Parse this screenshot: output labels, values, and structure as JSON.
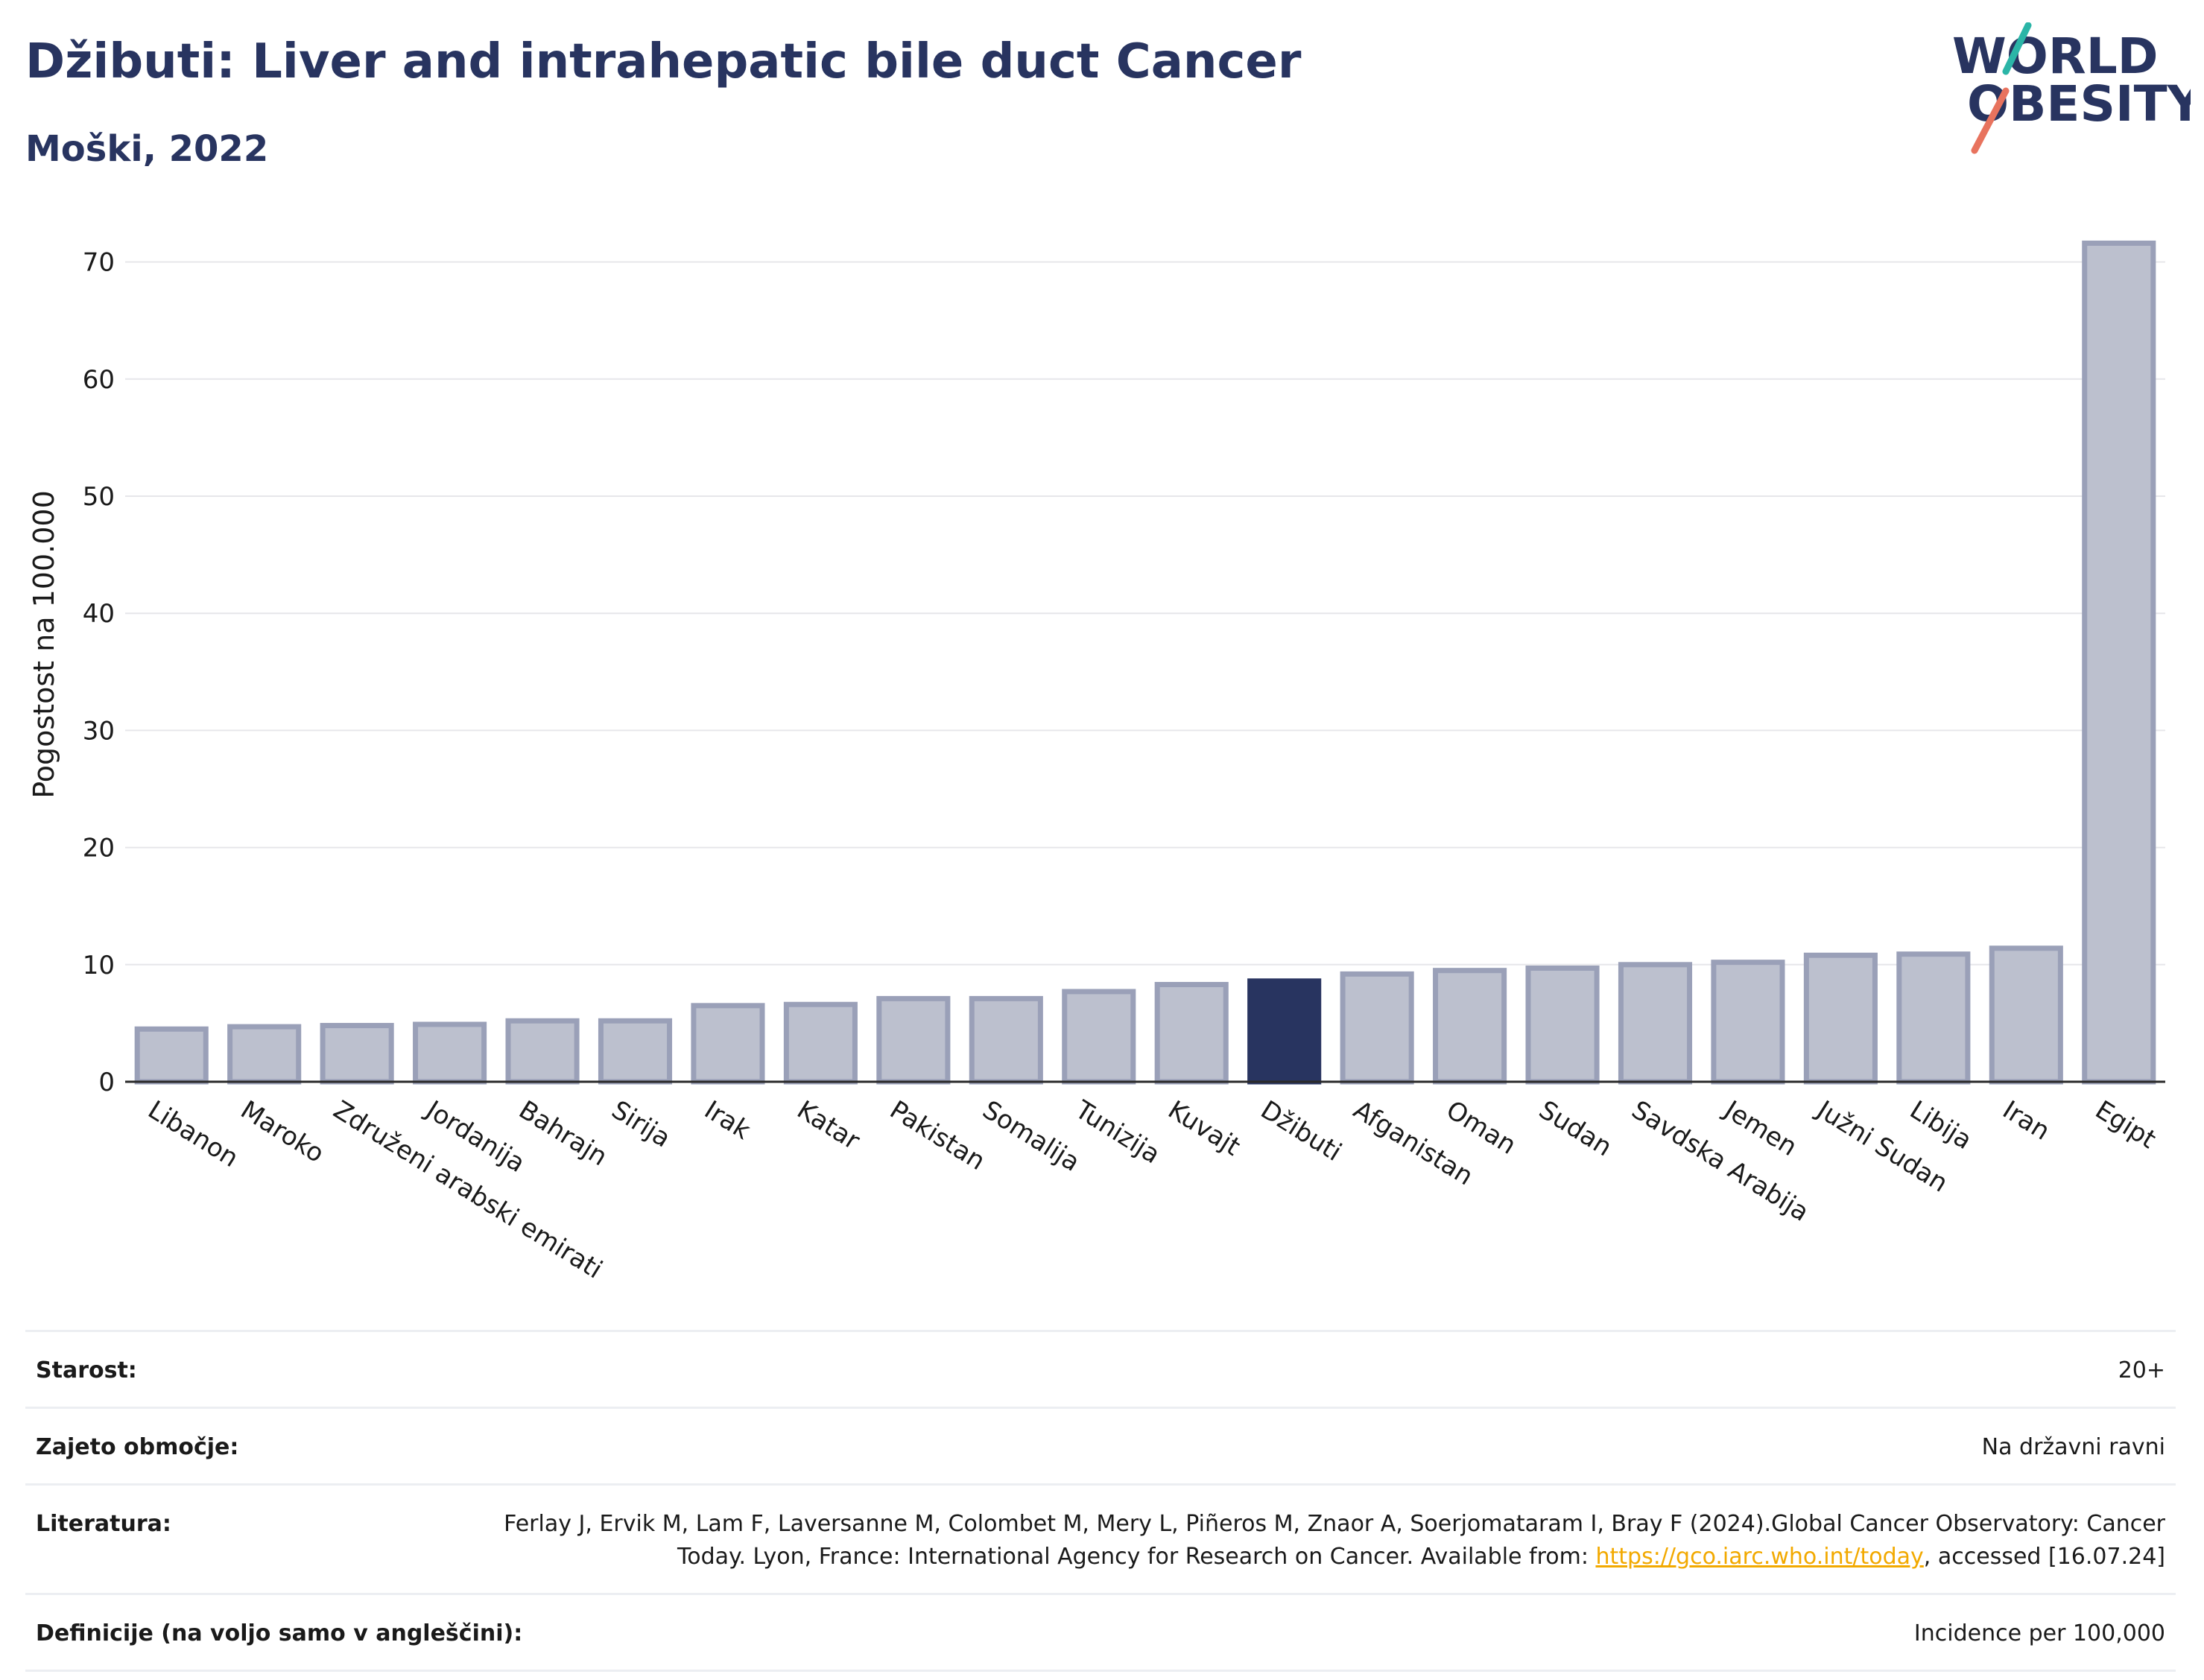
{
  "header": {
    "title": "Džibuti: Liver and intrahepatic bile duct Cancer",
    "subtitle": "Moški, 2022"
  },
  "logo": {
    "line1": "WORLD",
    "line2": "OBESITY"
  },
  "colors": {
    "highlight": "#283460",
    "bar": "#bcc0ce",
    "bar_border": "#9aa0b8",
    "accent_teal": "#2bb5a7",
    "accent_red": "#e8735e",
    "link": "#f2a900"
  },
  "chart_data": {
    "type": "bar",
    "ylabel": "Pogostost na 100.000",
    "xlabel": "",
    "ylim": [
      0,
      75
    ],
    "yticks": [
      0,
      10,
      20,
      30,
      40,
      50,
      60,
      70
    ],
    "grid": true,
    "highlight": "Džibuti",
    "categories": [
      "Libanon",
      "Maroko",
      "Združeni arabski emirati",
      "Jordanija",
      "Bahrajn",
      "Sirija",
      "Irak",
      "Katar",
      "Pakistan",
      "Somalija",
      "Tunizija",
      "Kuvajt",
      "Džibuti",
      "Afganistan",
      "Oman",
      "Sudan",
      "Savdska Arabija",
      "Jemen",
      "Južni Sudan",
      "Libija",
      "Iran",
      "Egipt"
    ],
    "values": [
      4.5,
      4.7,
      4.8,
      4.9,
      5.2,
      5.2,
      6.5,
      6.6,
      7.1,
      7.1,
      7.7,
      8.3,
      8.6,
      9.2,
      9.5,
      9.7,
      10.0,
      10.2,
      10.8,
      10.9,
      11.4,
      71.6
    ]
  },
  "meta": {
    "age_label": "Starost:",
    "age_value": "20+",
    "area_label": "Zajeto območje:",
    "area_value": "Na državni ravni",
    "lit_label": "Literatura:",
    "lit_text_1": "Ferlay J, Ervik M, Lam F, Laversanne M, Colombet M, Mery L, Piñeros M, Znaor A, Soerjomataram I, Bray F (2024).Global Cancer Observatory: Cancer Today. Lyon, France: International Agency for Research on Cancer. Available from: ",
    "lit_link": "https://gco.iarc.who.int/today",
    "lit_text_2": ", accessed [16.07.24]",
    "def_label": "Definicije (na voljo samo v angleščini):",
    "def_value": "Incidence per 100,000"
  }
}
